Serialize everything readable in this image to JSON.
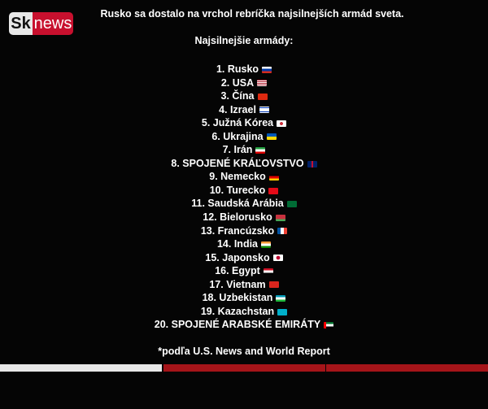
{
  "logo": {
    "part1": "Sk",
    "part2": "news"
  },
  "title": "Rusko sa dostalo na vrchol rebríčka najsilnejších armád sveta.",
  "subtitle": "Najsilnejšie armády:",
  "items": [
    {
      "label": "1. Rusko",
      "flag": "linear-gradient(#fff 33%,#0039a6 33% 66%,#d52b1e 66%)"
    },
    {
      "label": "2. USA",
      "flag": "repeating-linear-gradient(#b22234 0 1px,#fff 1px 2px)"
    },
    {
      "label": "3. Čína",
      "flag": "#de2910"
    },
    {
      "label": "4. Izrael",
      "flag": "linear-gradient(#fff 15%,#0038b8 15% 25%,#fff 25% 75%,#0038b8 75% 85%,#fff 85%)"
    },
    {
      "label": "5. Južná Kórea",
      "flag": "radial-gradient(circle,#cd2e3a 25%,#fff 30%)"
    },
    {
      "label": "6. Ukrajina",
      "flag": "linear-gradient(#0057b7 50%,#ffd700 50%)"
    },
    {
      "label": "7. Irán",
      "flag": "linear-gradient(#239f40 33%,#fff 33% 66%,#da0000 66%)"
    },
    {
      "label": "8. SPOJENÉ KRÁĽOVSTVO",
      "flag": "linear-gradient(90deg,#012169 40%,#c8102e 40% 60%,#012169 60%)"
    },
    {
      "label": "9. Nemecko",
      "flag": "linear-gradient(#000 33%,#dd0000 33% 66%,#ffce00 66%)"
    },
    {
      "label": "10. Turecko",
      "flag": "#e30a17"
    },
    {
      "label": "11. Saudská Arábia",
      "flag": "#006c35"
    },
    {
      "label": "12. Bielorusko",
      "flag": "linear-gradient(#c8313e 66%,#4aa657 66%)"
    },
    {
      "label": "13. Francúzsko",
      "flag": "linear-gradient(90deg,#0055a4 33%,#fff 33% 66%,#ef4135 66%)"
    },
    {
      "label": "14. India",
      "flag": "linear-gradient(#ff9933 33%,#fff 33% 66%,#138808 66%)"
    },
    {
      "label": "15. Japonsko",
      "flag": "radial-gradient(circle,#bc002d 30%,#fff 35%)"
    },
    {
      "label": "16. Egypt",
      "flag": "linear-gradient(#ce1126 33%,#fff 33% 66%,#000 66%)"
    },
    {
      "label": "17. Vietnam",
      "flag": "#da251d"
    },
    {
      "label": "18. Uzbekistan",
      "flag": "linear-gradient(#0099b5 33%,#fff 33% 66%,#1eb53a 66%)"
    },
    {
      "label": "19. Kazachstan",
      "flag": "#00afca"
    },
    {
      "label": "20. SPOJENÉ ARABSKÉ EMIRÁTY",
      "flag": "linear-gradient(90deg,#ff0000 25%,transparent 25%),linear-gradient(#00732f 33%,#fff 33% 66%,#000 66%)"
    }
  ],
  "footnote": "*podľa U.S. News and World Report",
  "progress": {
    "segments": 3,
    "viewed": 1,
    "viewed_color": "#e8e8e8",
    "pending_color": "#a51419"
  }
}
